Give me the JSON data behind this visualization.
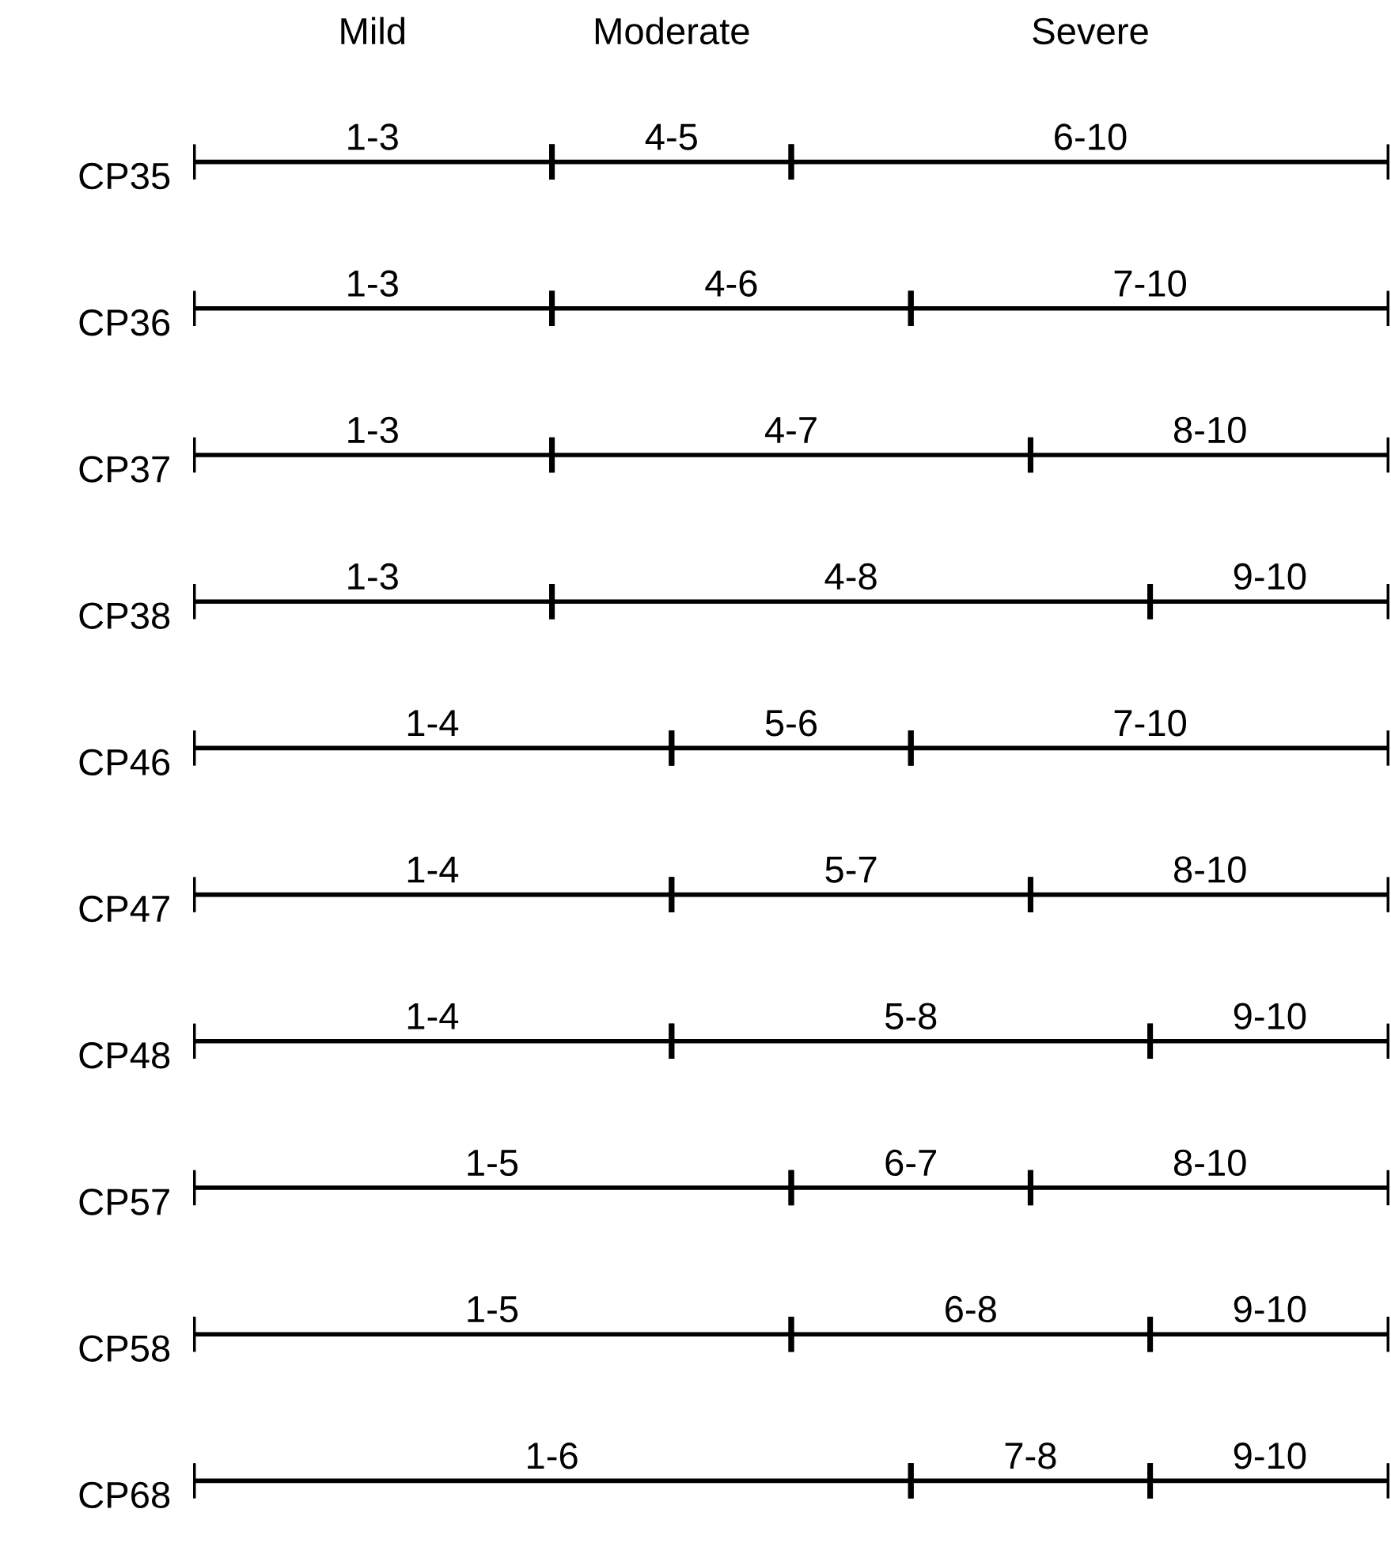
{
  "chart_data": {
    "type": "bar",
    "orientation": "horizontal",
    "stacked": true,
    "xlim": [
      0,
      10
    ],
    "tick_labels": "y",
    "annotations": [
      "Mild",
      "Moderate",
      "Severe"
    ],
    "categories": [
      "CP35",
      "CP36",
      "CP37",
      "CP38",
      "CP46",
      "CP47",
      "CP48",
      "CP57",
      "CP58",
      "CP68"
    ],
    "series": [
      {
        "color": "#000000",
        "values": [
          3,
          3,
          3,
          3,
          4,
          4,
          4,
          5,
          5,
          6
        ],
        "value_labels": [
          "1-3",
          "1-3",
          "1-3",
          "1-3",
          "1-4",
          "1-4",
          "1-4",
          "1-5",
          "1-5",
          "1-6"
        ]
      },
      {
        "color": "#000000",
        "values": [
          2,
          3,
          4,
          5,
          2,
          3,
          4,
          2,
          3,
          2
        ],
        "value_labels": [
          "4-5",
          "4-6",
          "4-7",
          "4-8",
          "5-6",
          "5-7",
          "5-8",
          "6-7",
          "6-8",
          "7-8"
        ]
      },
      {
        "color": "#000000",
        "values": [
          5,
          4,
          3,
          2,
          4,
          3,
          2,
          3,
          2,
          2
        ],
        "value_labels": [
          "6-10",
          "7-10",
          "8-10",
          "9-10",
          "7-10",
          "8-10",
          "9-10",
          "8-10",
          "9-10",
          "9-10"
        ]
      }
    ]
  }
}
